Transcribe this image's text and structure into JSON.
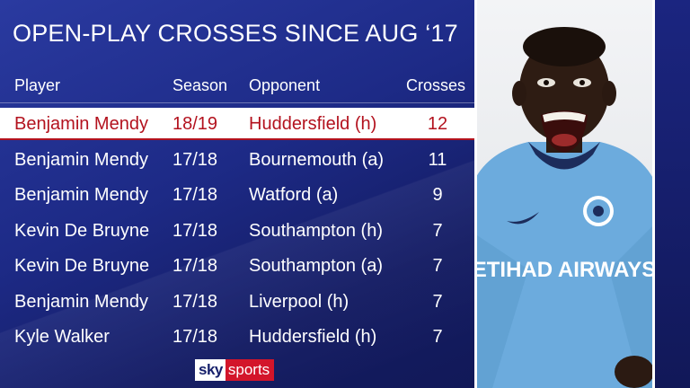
{
  "title": "OPEN-PLAY CROSSES SINCE AUG ‘17",
  "columns": {
    "player": "Player",
    "season": "Season",
    "opponent": "Opponent",
    "crosses": "Crosses"
  },
  "rows": [
    {
      "player": "Benjamin Mendy",
      "season": "18/19",
      "opponent": "Huddersfield (h)",
      "crosses": "12",
      "highlighted": true
    },
    {
      "player": "Benjamin Mendy",
      "season": "17/18",
      "opponent": "Bournemouth (a)",
      "crosses": "11"
    },
    {
      "player": "Benjamin Mendy",
      "season": "17/18",
      "opponent": "Watford (a)",
      "crosses": "9"
    },
    {
      "player": "Kevin De Bruyne",
      "season": "17/18",
      "opponent": "Southampton (h)",
      "crosses": "7"
    },
    {
      "player": "Kevin De Bruyne",
      "season": "17/18",
      "opponent": "Southampton (a)",
      "crosses": "7"
    },
    {
      "player": "Benjamin Mendy",
      "season": "17/18",
      "opponent": "Liverpool (h)",
      "crosses": "7"
    },
    {
      "player": "Kyle Walker",
      "season": "17/18",
      "opponent": "Huddersfield (h)",
      "crosses": "7"
    }
  ],
  "photo": {
    "shirt_sponsor": "ETIHAD AIRWAYS"
  },
  "logo": {
    "sky": "sky",
    "sports": "sports"
  },
  "colors": {
    "background": "#1d2a86",
    "highlight_bg": "#ffffff",
    "highlight_text": "#b3121e",
    "shirt": "#6cabdd",
    "logo_red": "#d3152a"
  }
}
